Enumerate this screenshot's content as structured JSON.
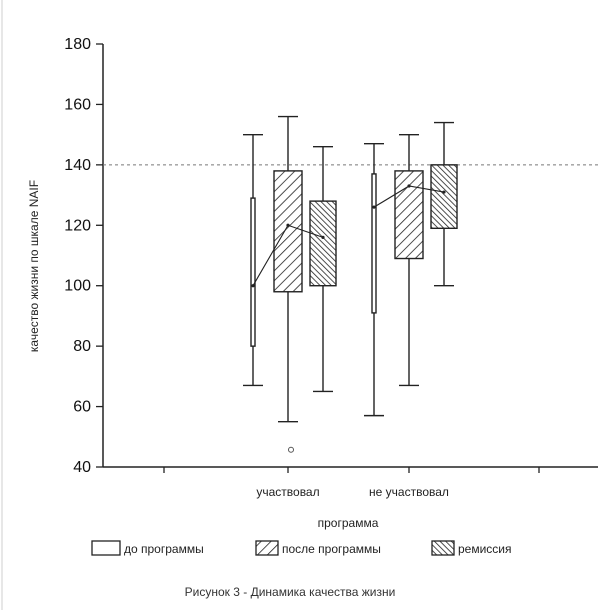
{
  "chart_data": {
    "type": "box",
    "ylabel": "качество жизни по шкале NAIF",
    "xlabel": "программа",
    "ylim": [
      40,
      180
    ],
    "yticks": [
      40,
      60,
      80,
      100,
      120,
      140,
      160,
      180
    ],
    "reference_line": 140,
    "categories": [
      "участвовал",
      "не участвовал"
    ],
    "series": [
      {
        "name": "до программы",
        "pattern": "plain",
        "boxes": [
          {
            "min": 67,
            "q1": 80,
            "median": 100,
            "q3": 129,
            "max": 150
          },
          {
            "min": 57,
            "q1": 91,
            "median": 126,
            "q3": 137,
            "max": 147
          }
        ]
      },
      {
        "name": "после программы",
        "pattern": "hatch-light",
        "boxes": [
          {
            "min": 55,
            "q1": 98,
            "median": 120,
            "q3": 138,
            "max": 156,
            "outliers": [
              53
            ]
          },
          {
            "min": 67,
            "q1": 109,
            "median": 133,
            "q3": 138,
            "max": 150
          }
        ]
      },
      {
        "name": "ремиссия",
        "pattern": "hatch-dense",
        "boxes": [
          {
            "min": 65,
            "q1": 100,
            "median": 116,
            "q3": 128,
            "max": 146
          },
          {
            "min": 100,
            "q1": 119,
            "median": 131,
            "q3": 140,
            "max": 154
          }
        ]
      }
    ],
    "legend_position": "bottom"
  },
  "caption": "Рисунок 3 - Динамика качества жизни"
}
